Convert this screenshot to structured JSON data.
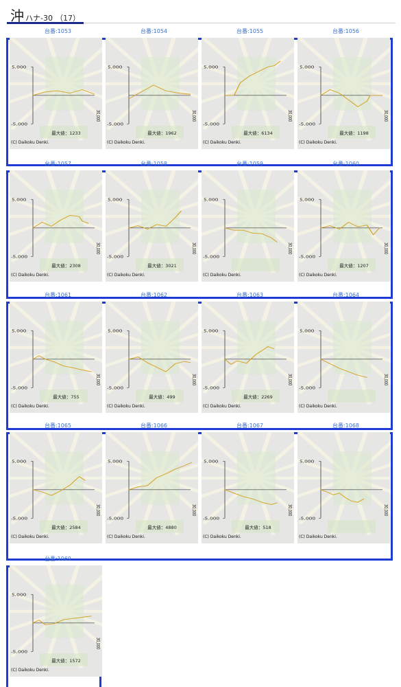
{
  "header": {
    "title": "沖",
    "subtitle": "ハナ-30",
    "count": "（17）"
  },
  "chart_common": {
    "y_top_label": "5,000",
    "y_bottom_label": "-5,000",
    "x_right_label": "30,000",
    "copyright": "(C) Daikoku Denki.",
    "max_prefix": "最大値：",
    "ylim": [
      -5000,
      5000
    ],
    "xlim": [
      0,
      30000
    ],
    "line_color": "#d7a427"
  },
  "machines": [
    {
      "label": "台番:1053",
      "max": "1233"
    },
    {
      "label": "台番:1054",
      "max": "1962"
    },
    {
      "label": "台番:1055",
      "max": "6134"
    },
    {
      "label": "台番:1056",
      "max": "1198"
    },
    {
      "label": "台番:1057",
      "max": "2308"
    },
    {
      "label": "台番:1058",
      "max": "3021"
    },
    {
      "label": "台番:1059",
      "max": ""
    },
    {
      "label": "台番:1060",
      "max": "1207"
    },
    {
      "label": "台番:1061",
      "max": "755"
    },
    {
      "label": "台番:1062",
      "max": "499"
    },
    {
      "label": "台番:1063",
      "max": "2269"
    },
    {
      "label": "台番:1064",
      "max": ""
    },
    {
      "label": "台番:1065",
      "max": "2584"
    },
    {
      "label": "台番:1066",
      "max": "4880"
    },
    {
      "label": "台番:1067",
      "max": "518"
    },
    {
      "label": "台番:1068",
      "max": ""
    },
    {
      "label": "台番:1069",
      "max": "1572"
    }
  ],
  "chart_data": [
    {
      "type": "line",
      "x": [
        0,
        4000,
        8000,
        12000,
        16000,
        20000
      ],
      "y": [
        0,
        600,
        800,
        400,
        1000,
        200
      ],
      "ylim": [
        -5000,
        5000
      ],
      "xlim": [
        0,
        30000
      ]
    },
    {
      "type": "line",
      "x": [
        0,
        4000,
        8000,
        12000,
        16000,
        20000
      ],
      "y": [
        -600,
        600,
        1800,
        800,
        400,
        200
      ],
      "ylim": [
        -5000,
        5000
      ],
      "xlim": [
        0,
        30000
      ]
    },
    {
      "type": "line",
      "x": [
        0,
        3000,
        5000,
        8000,
        11000,
        14000,
        16000,
        18000
      ],
      "y": [
        0,
        0,
        2200,
        3400,
        4200,
        5000,
        5200,
        6000
      ],
      "ylim": [
        -5000,
        5000
      ],
      "xlim": [
        0,
        30000
      ]
    },
    {
      "type": "line",
      "x": [
        0,
        3000,
        6000,
        9000,
        12000,
        15000,
        16000,
        20000
      ],
      "y": [
        0,
        1000,
        400,
        -800,
        -2000,
        -1000,
        0,
        0
      ],
      "ylim": [
        -5000,
        5000
      ],
      "xlim": [
        0,
        30000
      ]
    },
    {
      "type": "line",
      "x": [
        0,
        3000,
        6000,
        9000,
        12000,
        15000,
        16000,
        18000
      ],
      "y": [
        0,
        1000,
        300,
        1400,
        2200,
        2000,
        1200,
        800
      ],
      "ylim": [
        -5000,
        5000
      ],
      "xlim": [
        0,
        30000
      ]
    },
    {
      "type": "line",
      "x": [
        0,
        3000,
        6000,
        9000,
        12000,
        15000,
        17000
      ],
      "y": [
        0,
        400,
        -200,
        600,
        300,
        1800,
        3000
      ],
      "ylim": [
        -5000,
        5000
      ],
      "xlim": [
        0,
        30000
      ]
    },
    {
      "type": "line",
      "x": [
        0,
        3000,
        6000,
        9000,
        12000,
        15000,
        17000
      ],
      "y": [
        0,
        -400,
        -400,
        -900,
        -1000,
        -1700,
        -2500
      ],
      "ylim": [
        -5000,
        5000
      ],
      "xlim": [
        0,
        30000
      ]
    },
    {
      "type": "line",
      "x": [
        0,
        3000,
        6000,
        9000,
        12000,
        15000,
        17000,
        19000
      ],
      "y": [
        0,
        400,
        -200,
        1000,
        200,
        500,
        -1200,
        0
      ],
      "ylim": [
        -5000,
        5000
      ],
      "xlim": [
        0,
        30000
      ]
    },
    {
      "type": "line",
      "x": [
        0,
        2000,
        4000,
        7000,
        10000,
        13000,
        16000,
        19000
      ],
      "y": [
        0,
        600,
        0,
        -500,
        -1200,
        -1500,
        -1900,
        -2200
      ],
      "ylim": [
        -5000,
        5000
      ],
      "xlim": [
        0,
        30000
      ]
    },
    {
      "type": "line",
      "x": [
        0,
        3000,
        6000,
        9000,
        12000,
        15000,
        18000,
        20000
      ],
      "y": [
        0,
        400,
        -600,
        -1400,
        -2200,
        -800,
        -400,
        -600
      ],
      "ylim": [
        -5000,
        5000
      ],
      "xlim": [
        0,
        30000
      ]
    },
    {
      "type": "line",
      "x": [
        0,
        2000,
        4000,
        7000,
        10000,
        12000,
        14000,
        16000
      ],
      "y": [
        0,
        -900,
        -300,
        -700,
        800,
        1500,
        2200,
        1800
      ],
      "ylim": [
        -5000,
        5000
      ],
      "xlim": [
        0,
        30000
      ]
    },
    {
      "type": "line",
      "x": [
        0,
        3000,
        6000,
        9000,
        12000,
        15000
      ],
      "y": [
        0,
        -800,
        -1600,
        -2200,
        -2800,
        -3200
      ],
      "ylim": [
        -5000,
        5000
      ],
      "xlim": [
        0,
        30000
      ]
    },
    {
      "type": "line",
      "x": [
        0,
        3000,
        6000,
        9000,
        12000,
        15000,
        17000
      ],
      "y": [
        0,
        -400,
        -1000,
        -200,
        800,
        2300,
        1600
      ],
      "ylim": [
        -5000,
        5000
      ],
      "xlim": [
        0,
        30000
      ]
    },
    {
      "type": "line",
      "x": [
        0,
        3000,
        6000,
        9000,
        12000,
        15000,
        18000,
        21000
      ],
      "y": [
        0,
        500,
        700,
        2100,
        2800,
        3600,
        4200,
        4800
      ],
      "ylim": [
        -5000,
        5000
      ],
      "xlim": [
        0,
        30000
      ]
    },
    {
      "type": "line",
      "x": [
        0,
        3000,
        6000,
        9000,
        12000,
        15000,
        17000
      ],
      "y": [
        0,
        -600,
        -1200,
        -1600,
        -2200,
        -2600,
        -2300
      ],
      "ylim": [
        -5000,
        5000
      ],
      "xlim": [
        0,
        30000
      ]
    },
    {
      "type": "line",
      "x": [
        0,
        2000,
        4000,
        6000,
        8000,
        10000,
        12000,
        14000
      ],
      "y": [
        0,
        -400,
        -900,
        -600,
        -1400,
        -2000,
        -2200,
        -1600
      ],
      "ylim": [
        -5000,
        5000
      ],
      "xlim": [
        0,
        30000
      ]
    },
    {
      "type": "line",
      "x": [
        0,
        2000,
        4000,
        7000,
        10000,
        13000,
        16000,
        19000
      ],
      "y": [
        0,
        500,
        -300,
        -100,
        600,
        800,
        1000,
        1200
      ],
      "ylim": [
        -5000,
        5000
      ],
      "xlim": [
        0,
        30000
      ]
    }
  ]
}
